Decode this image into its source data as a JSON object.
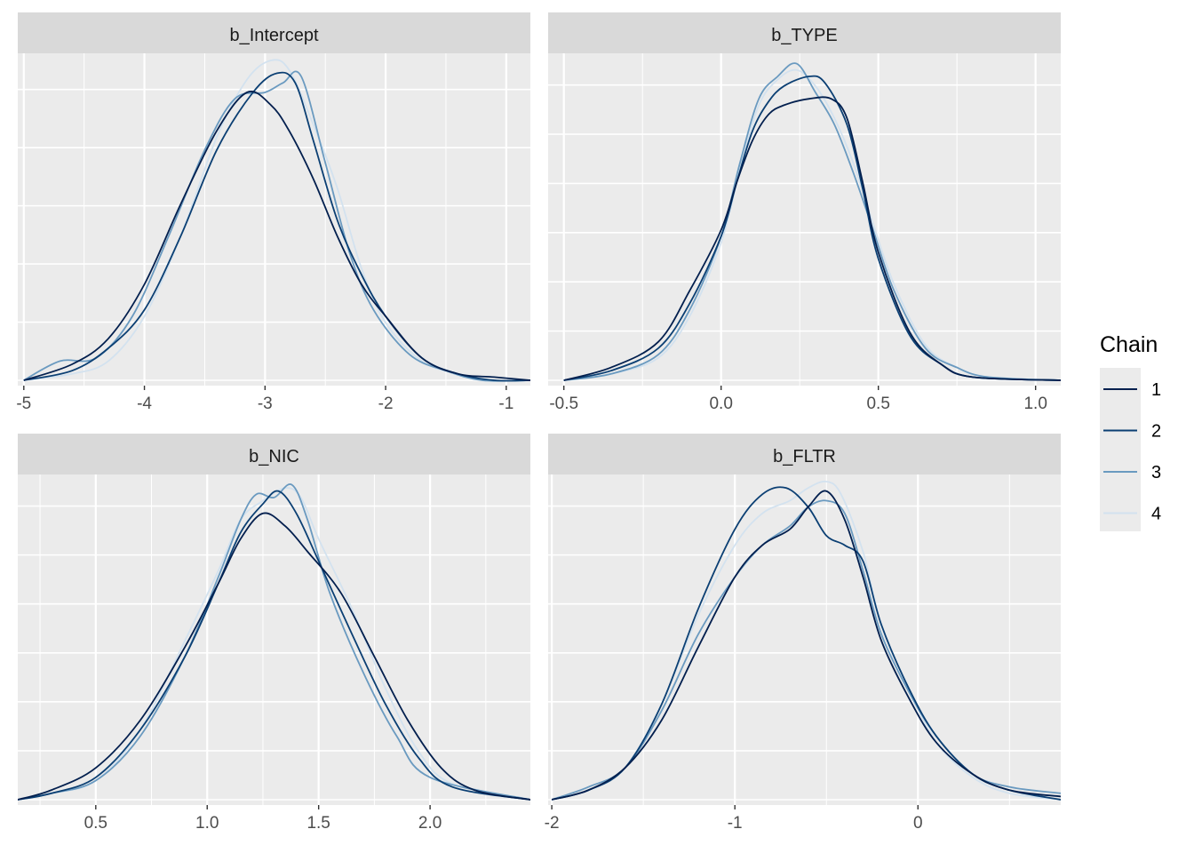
{
  "chart_data": {
    "type": "line",
    "chart_kind": "density",
    "legend": {
      "title": "Chain",
      "position": "right",
      "entries": [
        {
          "label": "1",
          "color": "#021F4E"
        },
        {
          "label": "2",
          "color": "#0B3F73"
        },
        {
          "label": "3",
          "color": "#6A9AC0"
        },
        {
          "label": "4",
          "color": "#D3E2EF"
        }
      ]
    },
    "grid": true,
    "y_ticks_labeled": false,
    "panels": [
      {
        "title": "b_Intercept",
        "xlim": [
          -5.05,
          -0.8
        ],
        "ymax": 1.0,
        "x_ticks": [
          -5,
          -4,
          -3,
          -2,
          -1
        ],
        "x_tick_labels": [
          "-5",
          "-4",
          "-3",
          "-2",
          "-1"
        ],
        "y_minor_count": 6,
        "series": [
          {
            "chain": "1",
            "x": [
              -5.0,
              -4.6,
              -4.3,
              -4.0,
              -3.7,
              -3.4,
              -3.15,
              -2.95,
              -2.8,
              -2.6,
              -2.4,
              -2.2,
              -2.0,
              -1.7,
              -1.4,
              -1.1,
              -0.8
            ],
            "y": [
              0.0,
              0.05,
              0.13,
              0.3,
              0.55,
              0.78,
              0.9,
              0.86,
              0.78,
              0.63,
              0.45,
              0.3,
              0.2,
              0.07,
              0.02,
              0.01,
              0.0
            ]
          },
          {
            "chain": "2",
            "x": [
              -5.0,
              -4.6,
              -4.3,
              -4.0,
              -3.7,
              -3.4,
              -3.1,
              -2.9,
              -2.75,
              -2.6,
              -2.4,
              -2.2,
              -2.0,
              -1.7,
              -1.4,
              -1.1,
              -0.8
            ],
            "y": [
              0.0,
              0.03,
              0.1,
              0.22,
              0.45,
              0.72,
              0.9,
              0.96,
              0.93,
              0.75,
              0.5,
              0.33,
              0.2,
              0.07,
              0.02,
              0.0,
              0.0
            ]
          },
          {
            "chain": "3",
            "x": [
              -5.0,
              -4.7,
              -4.4,
              -4.1,
              -3.8,
              -3.5,
              -3.25,
              -3.0,
              -2.85,
              -2.7,
              -2.5,
              -2.3,
              -2.1,
              -1.8,
              -1.5,
              -1.2,
              -0.8
            ],
            "y": [
              0.0,
              0.06,
              0.07,
              0.2,
              0.45,
              0.72,
              0.88,
              0.9,
              0.93,
              0.95,
              0.68,
              0.4,
              0.22,
              0.08,
              0.03,
              0.0,
              0.0
            ]
          },
          {
            "chain": "4",
            "x": [
              -5.0,
              -4.6,
              -4.3,
              -4.0,
              -3.7,
              -3.4,
              -3.15,
              -2.95,
              -2.8,
              -2.6,
              -2.4,
              -2.2,
              -2.0,
              -1.7,
              -1.4,
              -1.1,
              -0.8
            ],
            "y": [
              0.0,
              0.02,
              0.06,
              0.2,
              0.45,
              0.76,
              0.94,
              1.0,
              0.97,
              0.8,
              0.6,
              0.35,
              0.18,
              0.06,
              0.02,
              0.0,
              0.0
            ]
          }
        ]
      },
      {
        "title": "b_TYPE",
        "xlim": [
          -0.55,
          1.08
        ],
        "ymax": 1.0,
        "x_ticks": [
          -0.5,
          0.0,
          0.5,
          1.0
        ],
        "x_tick_labels": [
          "-0.5",
          "0.0",
          "0.5",
          "1.0"
        ],
        "y_minor_count": 7,
        "series": [
          {
            "chain": "1",
            "x": [
              -0.5,
              -0.35,
              -0.2,
              -0.1,
              0.0,
              0.05,
              0.1,
              0.15,
              0.2,
              0.28,
              0.35,
              0.4,
              0.45,
              0.5,
              0.6,
              0.7,
              0.8,
              1.08
            ],
            "y": [
              0.0,
              0.04,
              0.12,
              0.28,
              0.47,
              0.62,
              0.75,
              0.83,
              0.86,
              0.88,
              0.88,
              0.82,
              0.62,
              0.4,
              0.15,
              0.05,
              0.01,
              0.0
            ]
          },
          {
            "chain": "2",
            "x": [
              -0.5,
              -0.35,
              -0.2,
              -0.1,
              0.0,
              0.05,
              0.1,
              0.15,
              0.2,
              0.28,
              0.33,
              0.4,
              0.45,
              0.5,
              0.6,
              0.7,
              0.8,
              1.08
            ],
            "y": [
              0.0,
              0.03,
              0.1,
              0.24,
              0.45,
              0.62,
              0.78,
              0.87,
              0.92,
              0.95,
              0.93,
              0.8,
              0.6,
              0.38,
              0.14,
              0.05,
              0.01,
              0.0
            ]
          },
          {
            "chain": "3",
            "x": [
              -0.5,
              -0.35,
              -0.2,
              -0.1,
              0.0,
              0.06,
              0.12,
              0.18,
              0.24,
              0.3,
              0.36,
              0.42,
              0.48,
              0.55,
              0.65,
              0.75,
              0.85,
              1.08
            ],
            "y": [
              0.0,
              0.02,
              0.08,
              0.22,
              0.45,
              0.68,
              0.88,
              0.95,
              0.99,
              0.9,
              0.8,
              0.65,
              0.48,
              0.28,
              0.1,
              0.04,
              0.01,
              0.0
            ]
          },
          {
            "chain": "4",
            "x": [
              -0.5,
              -0.35,
              -0.2,
              -0.1,
              0.0,
              0.06,
              0.12,
              0.18,
              0.24,
              0.3,
              0.36,
              0.42,
              0.48,
              0.55,
              0.65,
              0.75,
              0.85,
              1.08
            ],
            "y": [
              0.0,
              0.02,
              0.07,
              0.2,
              0.43,
              0.66,
              0.86,
              0.94,
              0.97,
              0.92,
              0.82,
              0.68,
              0.5,
              0.3,
              0.11,
              0.04,
              0.01,
              0.0
            ]
          }
        ]
      },
      {
        "title": "b_NIC",
        "xlim": [
          0.15,
          2.45
        ],
        "ymax": 1.0,
        "x_ticks": [
          0.5,
          1.0,
          1.5,
          2.0
        ],
        "x_tick_labels": [
          "0.5",
          "1.0",
          "1.5",
          "2.0"
        ],
        "y_minor_count": 7,
        "series": [
          {
            "chain": "1",
            "x": [
              0.15,
              0.3,
              0.5,
              0.7,
              0.9,
              1.05,
              1.15,
              1.25,
              1.35,
              1.45,
              1.6,
              1.75,
              1.9,
              2.05,
              2.2,
              2.45
            ],
            "y": [
              0.0,
              0.03,
              0.1,
              0.25,
              0.48,
              0.68,
              0.82,
              0.9,
              0.86,
              0.78,
              0.65,
              0.45,
              0.25,
              0.1,
              0.03,
              0.0
            ]
          },
          {
            "chain": "2",
            "x": [
              0.15,
              0.3,
              0.5,
              0.7,
              0.9,
              1.05,
              1.15,
              1.25,
              1.32,
              1.4,
              1.5,
              1.65,
              1.8,
              1.95,
              2.1,
              2.45
            ],
            "y": [
              0.0,
              0.02,
              0.07,
              0.22,
              0.45,
              0.68,
              0.84,
              0.93,
              0.97,
              0.9,
              0.75,
              0.52,
              0.3,
              0.13,
              0.04,
              0.0
            ]
          },
          {
            "chain": "3",
            "x": [
              0.15,
              0.3,
              0.5,
              0.7,
              0.9,
              1.05,
              1.15,
              1.22,
              1.3,
              1.38,
              1.45,
              1.55,
              1.7,
              1.85,
              2.0,
              2.45
            ],
            "y": [
              0.0,
              0.02,
              0.06,
              0.2,
              0.45,
              0.7,
              0.88,
              0.96,
              0.95,
              0.99,
              0.88,
              0.65,
              0.4,
              0.2,
              0.07,
              0.0
            ]
          },
          {
            "chain": "4",
            "x": [
              0.15,
              0.3,
              0.5,
              0.7,
              0.9,
              1.05,
              1.15,
              1.25,
              1.35,
              1.42,
              1.5,
              1.65,
              1.8,
              1.95,
              2.1,
              2.45
            ],
            "y": [
              0.0,
              0.02,
              0.06,
              0.22,
              0.5,
              0.72,
              0.88,
              0.94,
              0.98,
              0.95,
              0.82,
              0.6,
              0.35,
              0.15,
              0.05,
              0.0
            ]
          }
        ]
      },
      {
        "title": "b_FLTR",
        "xlim": [
          -2.02,
          0.78
        ],
        "ymax": 1.0,
        "x_ticks": [
          -2,
          -1,
          0
        ],
        "x_tick_labels": [
          "-2",
          "-1",
          "0"
        ],
        "y_minor_count": 7,
        "series": [
          {
            "chain": "1",
            "x": [
              -2.0,
              -1.8,
              -1.6,
              -1.4,
              -1.2,
              -1.0,
              -0.85,
              -0.7,
              -0.6,
              -0.5,
              -0.4,
              -0.3,
              -0.2,
              -0.05,
              0.1,
              0.3,
              0.5,
              0.78
            ],
            "y": [
              0.0,
              0.03,
              0.1,
              0.25,
              0.48,
              0.7,
              0.8,
              0.85,
              0.92,
              0.97,
              0.88,
              0.7,
              0.5,
              0.32,
              0.18,
              0.08,
              0.03,
              0.01
            ]
          },
          {
            "chain": "2",
            "x": [
              -2.0,
              -1.8,
              -1.6,
              -1.4,
              -1.2,
              -1.0,
              -0.85,
              -0.72,
              -0.6,
              -0.5,
              -0.4,
              -0.3,
              -0.2,
              -0.05,
              0.1,
              0.3,
              0.5,
              0.78
            ],
            "y": [
              0.0,
              0.03,
              0.1,
              0.3,
              0.6,
              0.85,
              0.96,
              0.98,
              0.92,
              0.83,
              0.8,
              0.75,
              0.55,
              0.35,
              0.2,
              0.08,
              0.03,
              0.0
            ]
          },
          {
            "chain": "3",
            "x": [
              -2.0,
              -1.8,
              -1.6,
              -1.4,
              -1.2,
              -1.0,
              -0.85,
              -0.7,
              -0.6,
              -0.5,
              -0.4,
              -0.3,
              -0.2,
              -0.05,
              0.1,
              0.3,
              0.5,
              0.78
            ],
            "y": [
              0.0,
              0.04,
              0.1,
              0.28,
              0.52,
              0.7,
              0.8,
              0.86,
              0.92,
              0.94,
              0.9,
              0.72,
              0.52,
              0.34,
              0.2,
              0.08,
              0.04,
              0.02
            ]
          },
          {
            "chain": "4",
            "x": [
              -2.0,
              -1.8,
              -1.6,
              -1.4,
              -1.2,
              -1.0,
              -0.85,
              -0.7,
              -0.6,
              -0.5,
              -0.42,
              -0.3,
              -0.2,
              -0.05,
              0.1,
              0.3,
              0.5,
              0.78
            ],
            "y": [
              0.0,
              0.03,
              0.1,
              0.3,
              0.58,
              0.8,
              0.9,
              0.94,
              0.98,
              1.0,
              0.96,
              0.78,
              0.55,
              0.35,
              0.18,
              0.07,
              0.02,
              0.0
            ]
          }
        ]
      }
    ]
  }
}
